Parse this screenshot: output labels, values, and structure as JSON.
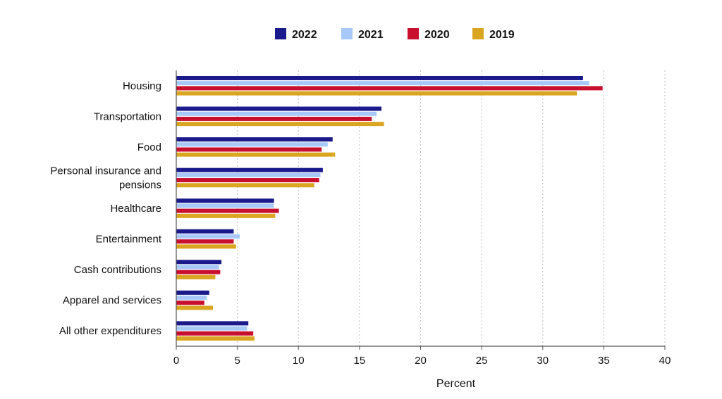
{
  "chart_data": {
    "type": "bar",
    "orientation": "horizontal",
    "categories": [
      "Housing",
      "Transportation",
      "Food",
      "Personal insurance and pensions",
      "Healthcare",
      "Entertainment",
      "Cash contributions",
      "Apparel and services",
      "All other expenditures"
    ],
    "category_lines": [
      [
        "Housing"
      ],
      [
        "Transportation"
      ],
      [
        "Food"
      ],
      [
        "Personal insurance and",
        "pensions"
      ],
      [
        "Healthcare"
      ],
      [
        "Entertainment"
      ],
      [
        "Cash contributions"
      ],
      [
        "Apparel and services"
      ],
      [
        "All other expenditures"
      ]
    ],
    "series": [
      {
        "name": "2022",
        "color": "#1a1a8c",
        "values": [
          33.3,
          16.8,
          12.8,
          12.0,
          8.0,
          4.7,
          3.7,
          2.7,
          5.9
        ]
      },
      {
        "name": "2021",
        "color": "#a8c8f8",
        "values": [
          33.8,
          16.4,
          12.4,
          11.8,
          8.0,
          5.2,
          3.5,
          2.5,
          5.8
        ]
      },
      {
        "name": "2020",
        "color": "#c8102e",
        "values": [
          34.9,
          16.0,
          11.9,
          11.7,
          8.4,
          4.7,
          3.6,
          2.3,
          6.3
        ]
      },
      {
        "name": "2019",
        "color": "#daa520",
        "values": [
          32.8,
          17.0,
          13.0,
          11.3,
          8.1,
          4.9,
          3.2,
          3.0,
          6.4
        ]
      }
    ],
    "xlabel": "Percent",
    "xlim": [
      0,
      40
    ],
    "xticks": [
      0,
      5,
      10,
      15,
      20,
      25,
      30,
      35,
      40
    ],
    "grid": "vertical dotted",
    "legend_position": "top"
  }
}
